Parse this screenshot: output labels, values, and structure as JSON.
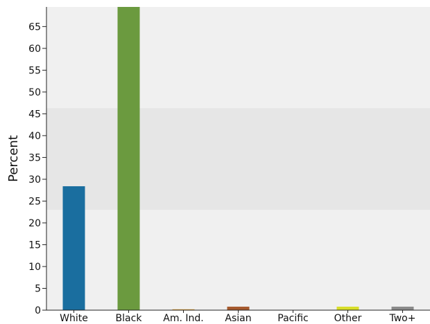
{
  "chart_data": {
    "type": "bar",
    "categories": [
      "White",
      "Black",
      "Am. Ind.",
      "Asian",
      "Pacific",
      "Other",
      "Two+"
    ],
    "values": [
      28.4,
      69.5,
      0.2,
      0.8,
      0.0,
      0.8,
      0.8
    ],
    "colors": [
      "#1a6e9f",
      "#6b9a3f",
      "#e3a23a",
      "#a65a2e",
      "#8e3f3f",
      "#d8de2a",
      "#8a8a8a"
    ],
    "ylabel": "Percent",
    "xlabel": "",
    "ylim": [
      0,
      69.5
    ],
    "yticks": [
      0,
      5,
      10,
      15,
      20,
      25,
      30,
      35,
      40,
      45,
      50,
      55,
      60,
      65
    ],
    "shaded_band": [
      23.0,
      46.3
    ],
    "plot_background": "#f0f0f0",
    "band_color": "#e6e6e6",
    "grid": false
  }
}
